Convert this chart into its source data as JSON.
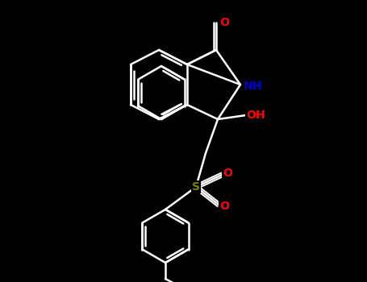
{
  "bg_color": "#000000",
  "bond_color": "#ffffff",
  "fig_width": 4.55,
  "fig_height": 3.5,
  "dpi": 100,
  "atom_colors": {
    "O": "#ff0000",
    "N": "#0000cc",
    "S": "#808000",
    "C": "#ffffff",
    "H": "#ffffff"
  },
  "lw": 1.8
}
